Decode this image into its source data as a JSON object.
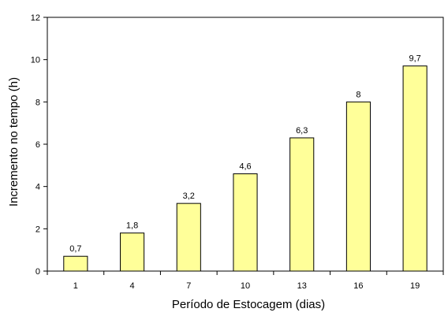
{
  "chart_data": {
    "type": "bar",
    "title": "",
    "xlabel": "Período de Estocagem (dias)",
    "ylabel": "Incremento no tempo (h)",
    "categories": [
      "1",
      "4",
      "7",
      "10",
      "13",
      "16",
      "19"
    ],
    "values": [
      0.7,
      1.8,
      3.2,
      4.6,
      6.3,
      8,
      9.7
    ],
    "data_labels": [
      "0,7",
      "1,8",
      "3,2",
      "4,6",
      "6,3",
      "8",
      "9,7"
    ],
    "ylim": [
      0,
      12
    ],
    "yticks": [
      0,
      2,
      4,
      6,
      8,
      10,
      12
    ],
    "ytick_labels": [
      "0",
      "2",
      "4",
      "6",
      "8",
      "10",
      "12"
    ],
    "grid": false,
    "legend": "none",
    "colors": {
      "bar_fill": "#FFFF99",
      "bar_stroke": "#000000",
      "axis": "#000000",
      "background": "#FFFFFF"
    }
  }
}
